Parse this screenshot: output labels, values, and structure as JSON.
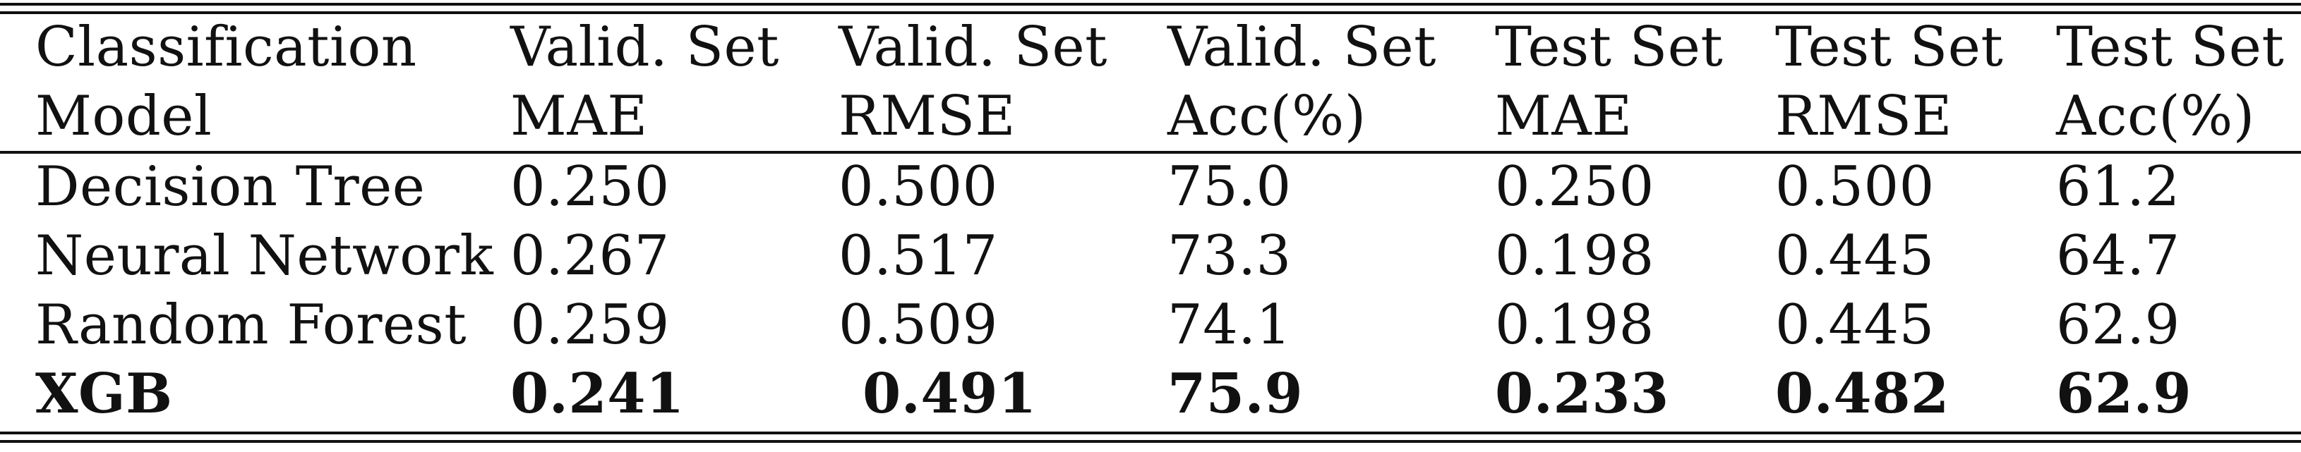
{
  "table": {
    "header": [
      {
        "line1": "Classification",
        "line2": "Model"
      },
      {
        "line1": "Valid. Set",
        "line2": "MAE"
      },
      {
        "line1": "Valid. Set",
        "line2": "RMSE"
      },
      {
        "line1": "Valid. Set",
        "line2": "Acc(%)"
      },
      {
        "line1": "Test Set",
        "line2": "MAE"
      },
      {
        "line1": "Test Set",
        "line2": "RMSE"
      },
      {
        "line1": "Test Set",
        "line2": "Acc(%)"
      }
    ],
    "rows": [
      [
        "Decision Tree",
        "0.250",
        "0.500",
        "75.0",
        "0.250",
        "0.500",
        "61.2"
      ],
      [
        "Neural Network",
        "0.267",
        "0.517",
        "73.3",
        "0.198",
        "0.445",
        "64.7"
      ],
      [
        "Random Forest",
        "0.259",
        "0.509",
        "74.1",
        "0.198",
        "0.445",
        "62.9"
      ],
      [
        "XGB",
        "0.241",
        "0.491",
        "75.9",
        "0.233",
        "0.482",
        "62.9"
      ]
    ],
    "bold_row_index": 3
  }
}
